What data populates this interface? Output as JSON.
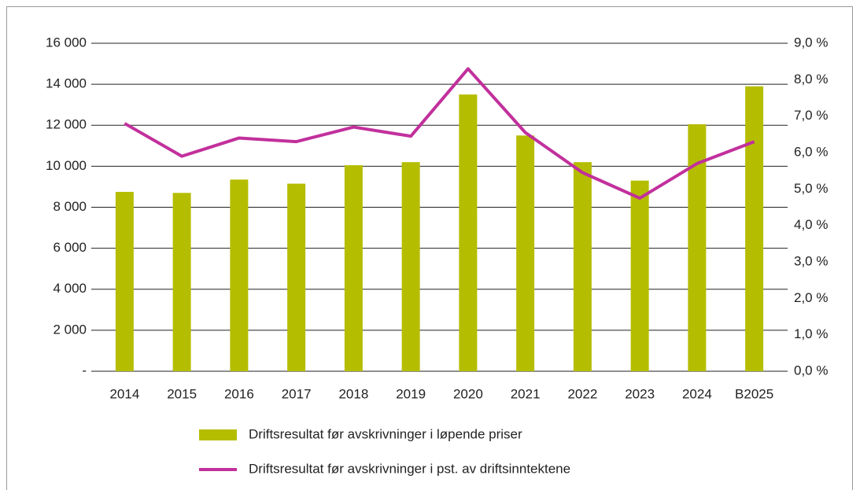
{
  "chart_data": {
    "type": "bar_line",
    "categories": [
      "2014",
      "2015",
      "2016",
      "2017",
      "2018",
      "2019",
      "2020",
      "2021",
      "2022",
      "2023",
      "2024",
      "B2025"
    ],
    "series": [
      {
        "name": "Driftsresultat før avskrivninger i løpende priser",
        "type": "bar",
        "color": "#b5bd00",
        "values": [
          8750,
          8700,
          9350,
          9150,
          10050,
          10200,
          13500,
          11500,
          10200,
          9300,
          12050,
          13900
        ]
      },
      {
        "name": "Driftsresultat før avskrivninger i pst. av driftsinntektene",
        "type": "line",
        "axis": "y2",
        "color": "#c2309c",
        "values": [
          6.8,
          5.9,
          6.4,
          6.3,
          6.7,
          6.45,
          8.3,
          6.55,
          5.45,
          4.75,
          5.7,
          6.3
        ]
      }
    ],
    "ylim": [
      0,
      16000
    ],
    "yticks": [
      {
        "value": 0,
        "label": "-"
      },
      {
        "value": 2000,
        "label": "2 000"
      },
      {
        "value": 4000,
        "label": "4 000"
      },
      {
        "value": 6000,
        "label": "6 000"
      },
      {
        "value": 8000,
        "label": "8 000"
      },
      {
        "value": 10000,
        "label": "10 000"
      },
      {
        "value": 12000,
        "label": "12 000"
      },
      {
        "value": 14000,
        "label": "14 000"
      },
      {
        "value": 16000,
        "label": "16 000"
      }
    ],
    "y2lim": [
      0,
      9
    ],
    "y2ticks": [
      {
        "value": 0,
        "label": "0,0 %"
      },
      {
        "value": 1,
        "label": "1,0 %"
      },
      {
        "value": 2,
        "label": "2,0 %"
      },
      {
        "value": 3,
        "label": "3,0 %"
      },
      {
        "value": 4,
        "label": "4,0 %"
      },
      {
        "value": 5,
        "label": "5,0 %"
      },
      {
        "value": 6,
        "label": "6,0 %"
      },
      {
        "value": 7,
        "label": "7,0 %"
      },
      {
        "value": 8,
        "label": "8,0 %"
      },
      {
        "value": 9,
        "label": "9,0 %"
      }
    ],
    "grid": true,
    "legend": "bottom"
  }
}
